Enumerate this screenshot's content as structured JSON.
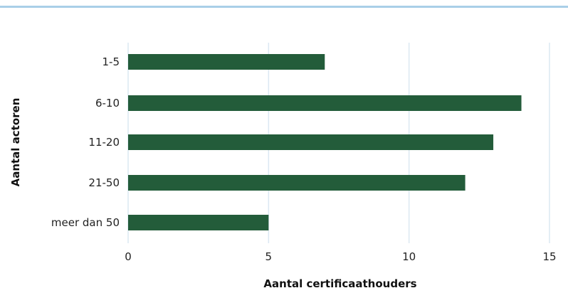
{
  "chart_data": {
    "type": "bar",
    "orientation": "horizontal",
    "categories": [
      "1-5",
      "6-10",
      "11-20",
      "21-50",
      "meer dan 50"
    ],
    "values": [
      7,
      14,
      13,
      12,
      5
    ],
    "xlabel": "Aantal certificaathouders",
    "ylabel": "Aantal actoren",
    "xlim": [
      0,
      15
    ],
    "xticks": [
      0,
      5,
      10,
      15
    ],
    "grid": "vertical",
    "bar_color": "#235c3a",
    "grid_color": "#dce8f2",
    "accent_color": "#a9cfe8"
  }
}
